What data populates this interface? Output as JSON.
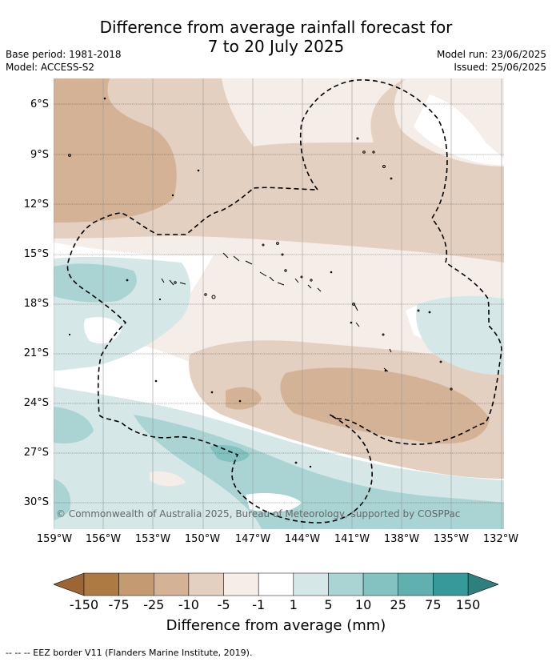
{
  "title_line1": "Difference from average rainfall forecast for",
  "title_line2": "7 to 20 July 2025",
  "meta_left": [
    "Base period: 1981-2018",
    "Model: ACCESS-S2"
  ],
  "meta_right": [
    "Model run: 23/06/2025",
    "Issued: 25/06/2025"
  ],
  "lat_labels": [
    "6°S",
    "9°S",
    "12°S",
    "15°S",
    "18°S",
    "21°S",
    "24°S",
    "27°S",
    "30°S"
  ],
  "lon_labels": [
    "159°W",
    "156°W",
    "153°W",
    "150°W",
    "147°W",
    "144°W",
    "141°W",
    "138°W",
    "135°W",
    "132°W"
  ],
  "copyright": "© Commonwealth of Australia 2025, Bureau of Meteorology, supported by COSPPac",
  "colorbar": {
    "labels": [
      "-150",
      "-75",
      "-25",
      "-10",
      "-5",
      "-1",
      "1",
      "5",
      "10",
      "25",
      "75",
      "150"
    ],
    "colors": [
      "#ae7a43",
      "#c39a72",
      "#d4b295",
      "#e4d0c0",
      "#f5ede7",
      "#ffffff",
      "#d5e8e7",
      "#aad4d4",
      "#82c2c1",
      "#5fb0ae",
      "#36999a"
    ],
    "extend_low_color": "#9d6534",
    "extend_high_color": "#2f7f7e",
    "title": "Difference from average (mm)"
  },
  "footer": "--  --  -- EEZ border V11 (Flanders Marine Institute, 2019)."
}
